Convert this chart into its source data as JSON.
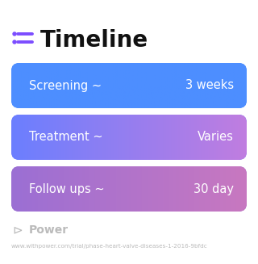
{
  "title": "Timeline",
  "title_fontsize": 20,
  "title_color": "#111111",
  "background_color": "#ffffff",
  "icon_color": "#7c4dff",
  "rows": [
    {
      "label": "Screening ~",
      "value": "3 weeks",
      "color_left": "#4d8eff",
      "color_right": "#4d8eff"
    },
    {
      "label": "Treatment ~",
      "value": "Varies",
      "color_left": "#6b7fff",
      "color_right": "#c07de0"
    },
    {
      "label": "Follow ups ~",
      "value": "30 day",
      "color_left": "#9b6fd4",
      "color_right": "#c878c0"
    }
  ],
  "footer_text": "Power",
  "footer_url": "www.withpower.com/trial/phase-heart-valve-diseases-1-2016-9bfdc",
  "footer_color": "#bbbbbb",
  "row_text_color": "#ffffff",
  "row_fontsize": 10.5
}
